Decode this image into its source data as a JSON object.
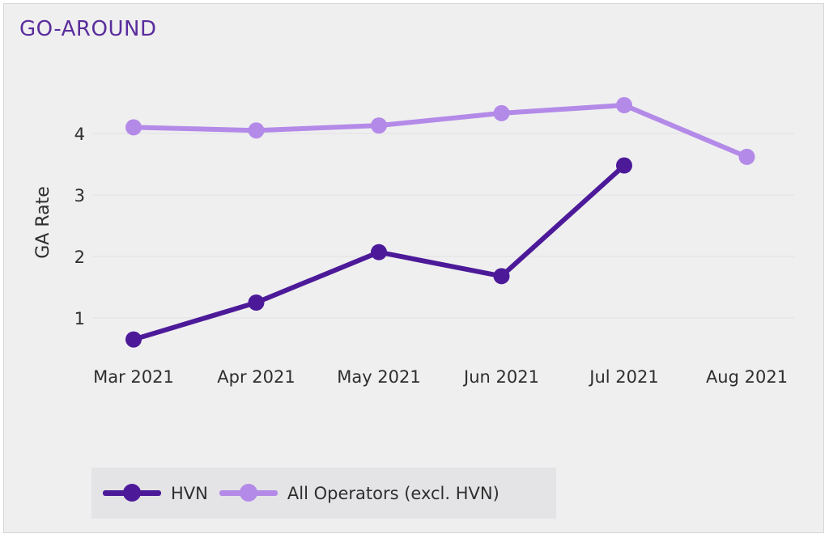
{
  "title": "GO-AROUND",
  "colors": {
    "hvn": "#4c1a99",
    "all_operators": "#b48ae8",
    "panel_bg": "#efeff0",
    "title": "#5a2d9c",
    "grid": "#e2e2e5",
    "text": "#2e2e2e"
  },
  "chart_data": {
    "type": "line",
    "title": "GO-AROUND",
    "xlabel": "",
    "ylabel": "GA Rate",
    "categories": [
      "Mar 2021",
      "Apr 2021",
      "May 2021",
      "Jun 2021",
      "Jul 2021",
      "Aug 2021"
    ],
    "y_ticks": [
      1,
      2,
      3,
      4
    ],
    "ylim": [
      0.4,
      4.8
    ],
    "grid": true,
    "legend_position": "bottom-left",
    "series": [
      {
        "name": "HVN",
        "values": [
          0.65,
          1.25,
          2.07,
          1.68,
          3.48,
          null
        ]
      },
      {
        "name": "All Operators (excl. HVN)",
        "values": [
          4.1,
          4.05,
          4.13,
          4.33,
          4.46,
          3.62
        ]
      }
    ]
  }
}
